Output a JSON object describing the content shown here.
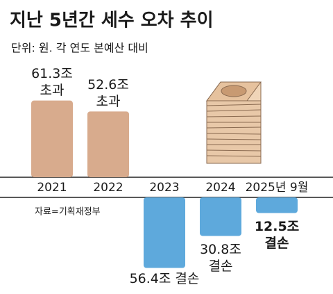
{
  "chart_data": {
    "type": "bar",
    "title": "지난 5년간 세수 오차 추이",
    "subtitle": "단위: 원. 각 연도 본예산 대비",
    "source": "자료=기획재정부",
    "categories": [
      "2021",
      "2022",
      "2023",
      "2024",
      "2025년 9월"
    ],
    "values": [
      61.3,
      52.6,
      -56.4,
      -30.8,
      -12.5
    ],
    "value_labels": [
      [
        "61.3조",
        "초과"
      ],
      [
        "52.6조",
        "초과"
      ],
      [
        "56.4조 결손"
      ],
      [
        "30.8조",
        "결손"
      ],
      [
        "12.5조",
        "결손"
      ]
    ],
    "positive_color": "#d8ab8d",
    "negative_color": "#5ea9dc"
  }
}
